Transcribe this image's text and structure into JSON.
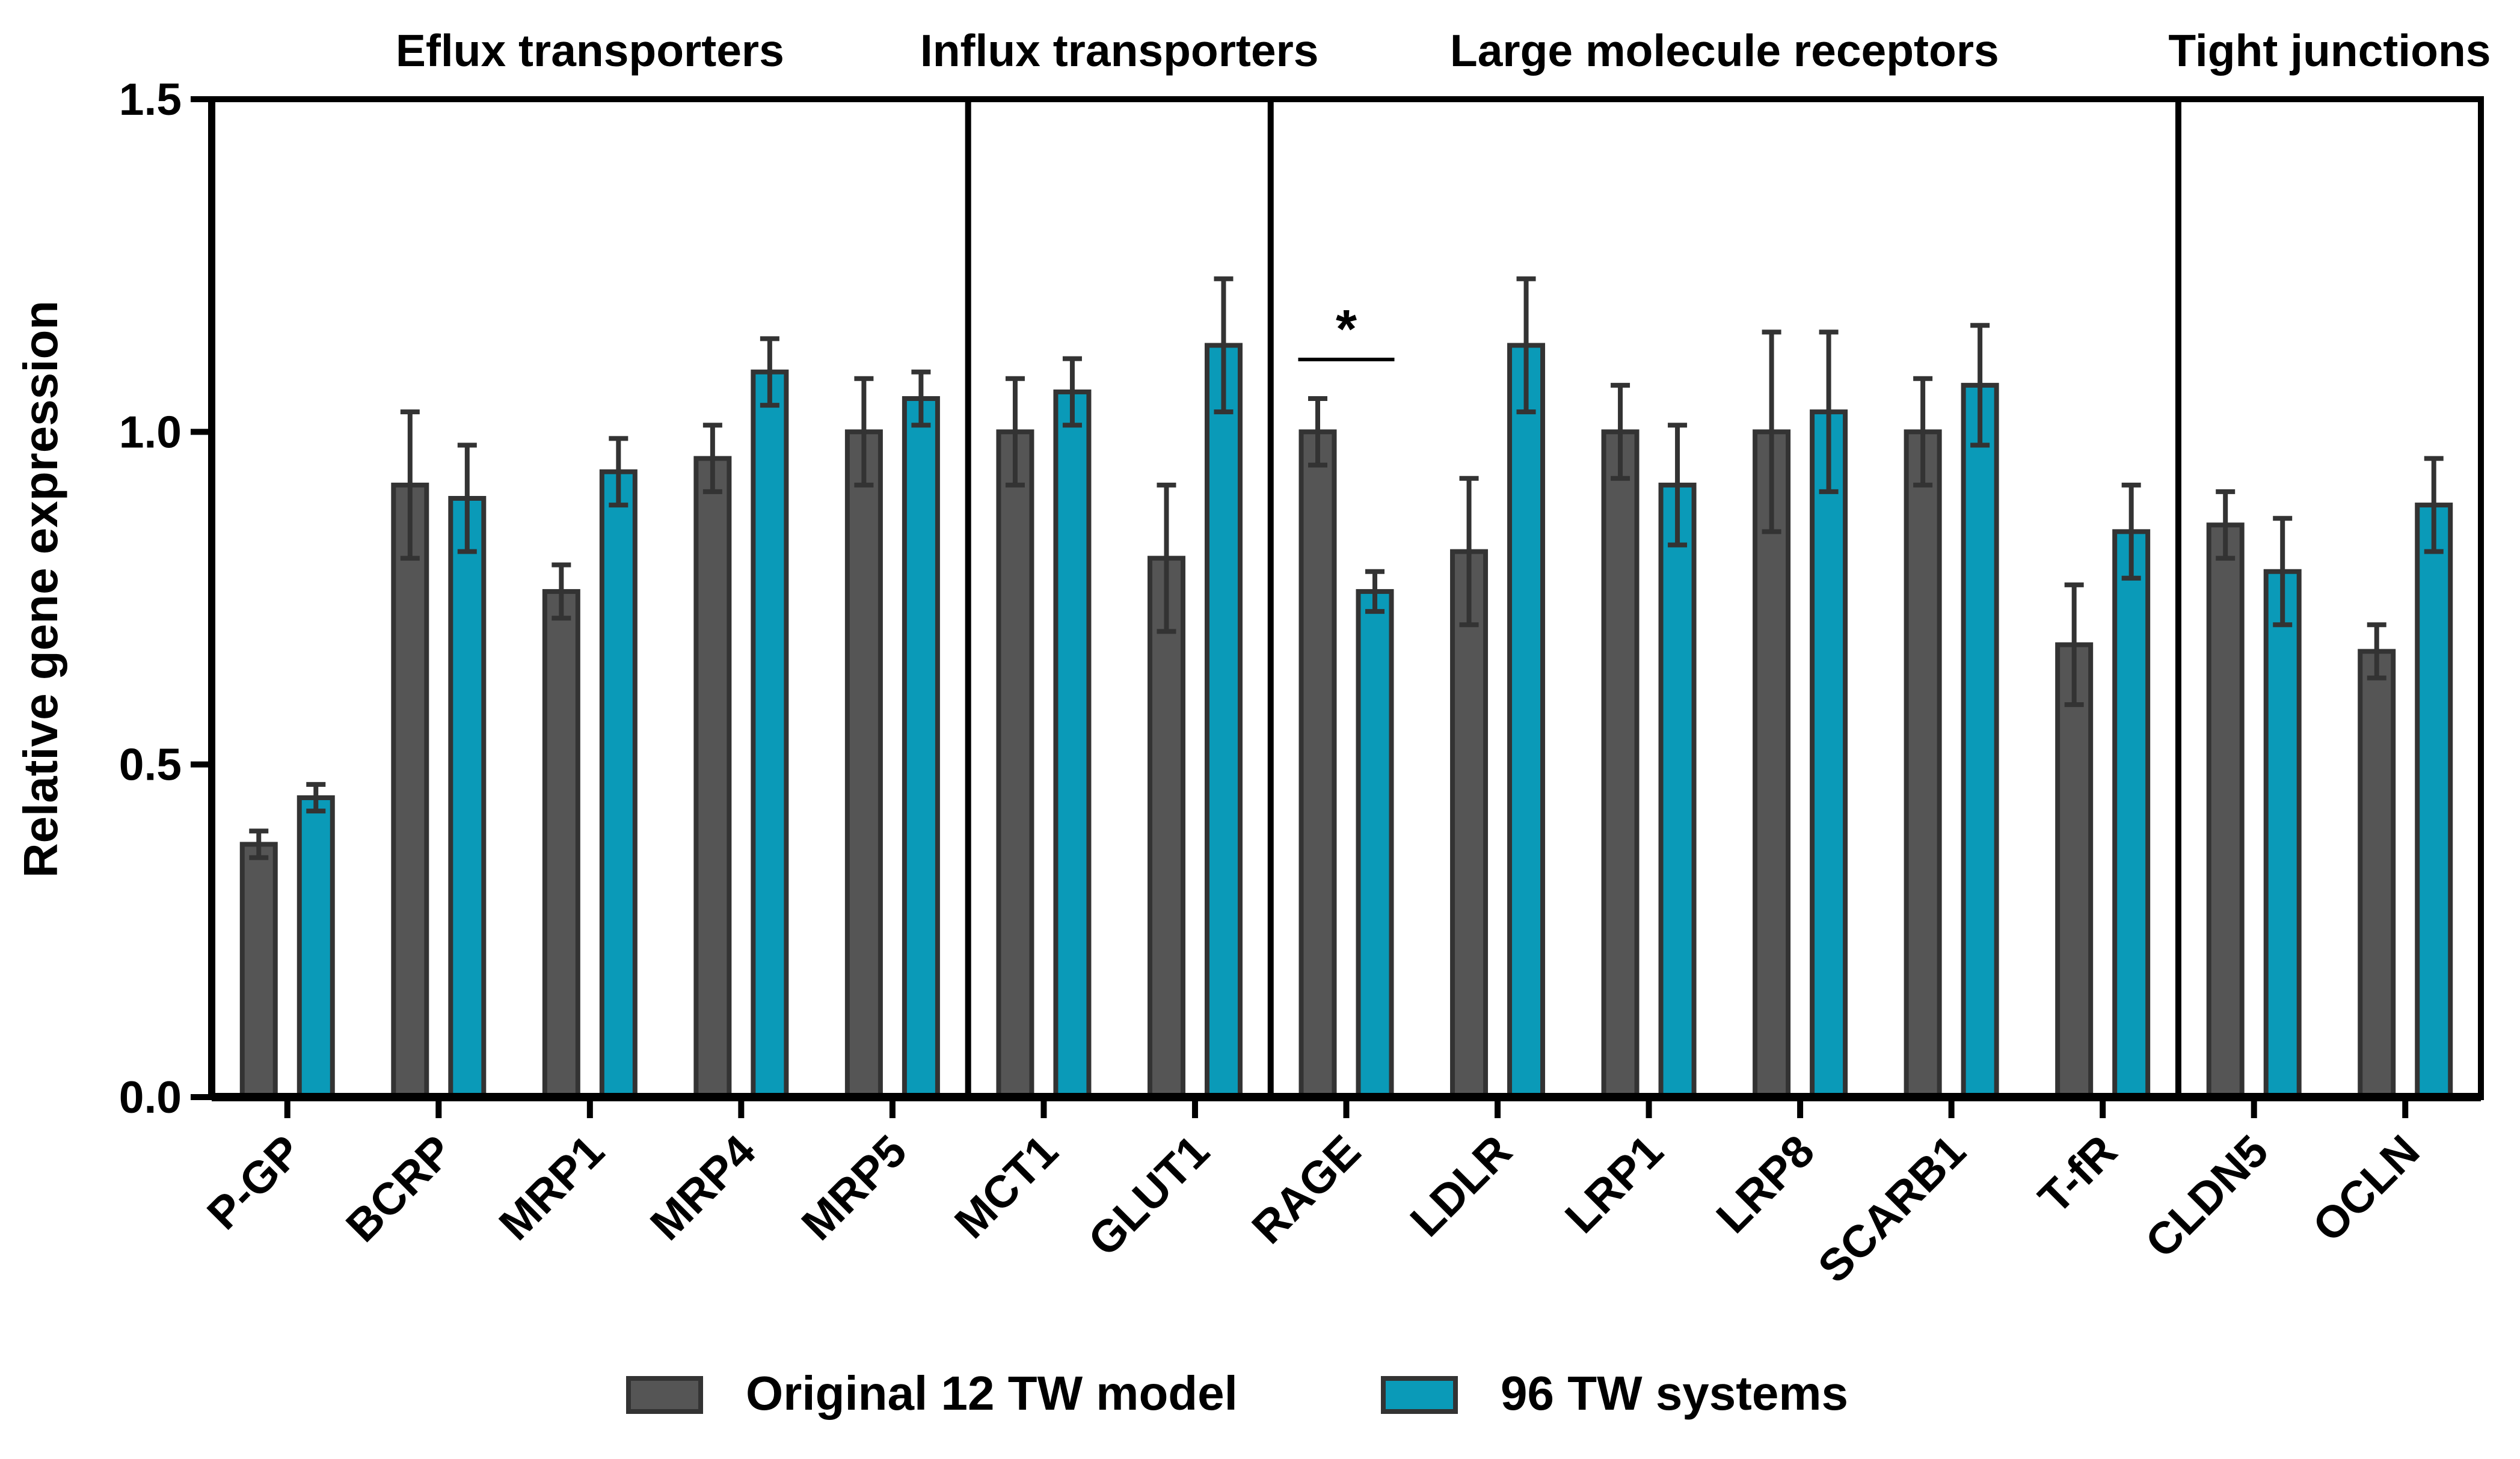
{
  "chart_data": {
    "type": "bar",
    "title": "",
    "xlabel": "",
    "ylabel": "Relative gene expression",
    "ylim": [
      0,
      1.5
    ],
    "yticks": [
      "0.0",
      "0.5",
      "1.0",
      "1.5"
    ],
    "categories": [
      "P-GP",
      "BCRP",
      "MRP1",
      "MRP4",
      "MRP5",
      "MCT1",
      "GLUT1",
      "RAGE",
      "LDLR",
      "LRP1",
      "LRP8",
      "SCARB1",
      "T-fR",
      "CLDN5",
      "OCLN"
    ],
    "groups": [
      {
        "label": "Eflux transporters",
        "start": 0,
        "end": 4
      },
      {
        "label": "Influx transporters",
        "start": 5,
        "end": 6
      },
      {
        "label": "Large molecule receptors",
        "start": 7,
        "end": 12
      },
      {
        "label": "Tight junctions",
        "start": 13,
        "end": 14
      }
    ],
    "series": [
      {
        "name": "Original 12 TW model",
        "color": "#555555",
        "values": [
          0.38,
          0.92,
          0.76,
          0.96,
          1.0,
          1.0,
          0.81,
          1.0,
          0.82,
          1.0,
          1.0,
          1.0,
          0.68,
          0.86,
          0.67
        ],
        "errors": [
          0.02,
          0.11,
          0.04,
          0.05,
          0.08,
          0.08,
          0.11,
          0.05,
          0.11,
          0.07,
          0.15,
          0.08,
          0.09,
          0.05,
          0.04
        ]
      },
      {
        "name": "96 TW systems",
        "color": "#0a9ab8",
        "values": [
          0.45,
          0.9,
          0.94,
          1.09,
          1.05,
          1.06,
          1.13,
          0.76,
          1.13,
          0.92,
          1.03,
          1.07,
          0.85,
          0.79,
          0.89
        ],
        "errors": [
          0.02,
          0.08,
          0.05,
          0.05,
          0.04,
          0.05,
          0.1,
          0.03,
          0.1,
          0.09,
          0.12,
          0.09,
          0.07,
          0.08,
          0.07
        ]
      }
    ],
    "annotations": [
      {
        "text": "*",
        "category": "RAGE"
      }
    ],
    "legend": "bottom-center",
    "grid": false
  }
}
